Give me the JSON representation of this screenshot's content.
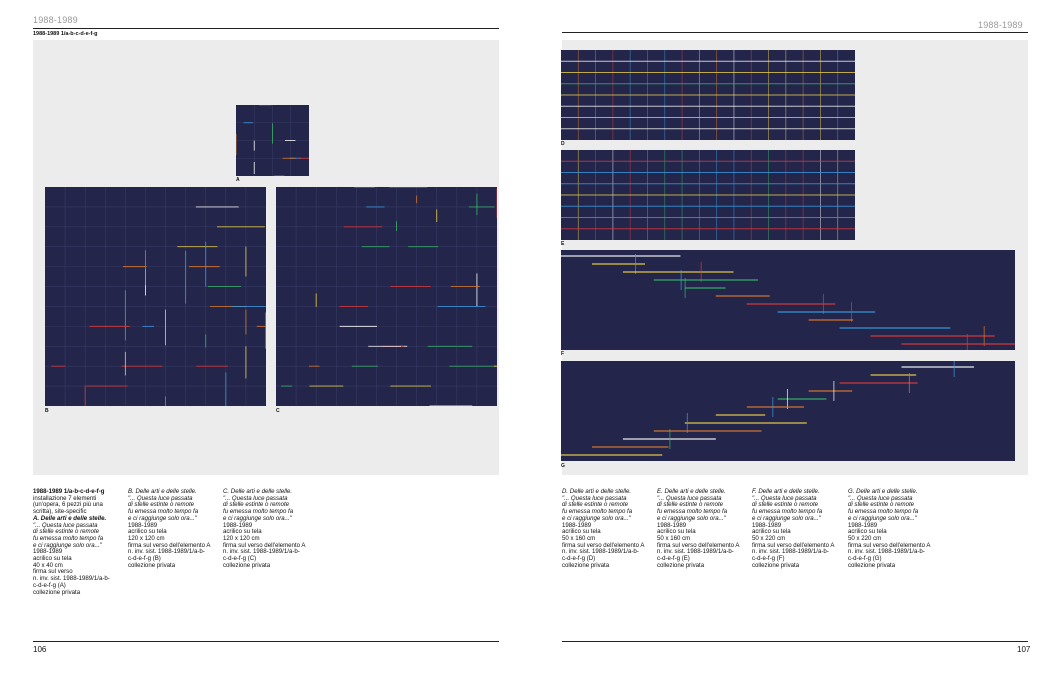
{
  "left_page": {
    "header": "1988-1989",
    "subheader": "1988-1989   1/a-b-c-d-e-f-g",
    "page_number": "106",
    "labels": [
      "A",
      "B",
      "C"
    ],
    "captions": [
      [
        "1988-1989   1/a-b-c-d-e-f-g",
        "installazione 7 elementi",
        "(un'opera, 6 pezzi più una",
        "scritta), site-specific",
        "A. Delle arti e delle stelle.",
        "\"... Questa luce passata",
        "di stelle estinte o remote",
        "fu emessa molto tempo fa",
        "e ci raggiunge solo ora...\"",
        "1988-1989",
        "acrilico su tela",
        "40 x 40 cm",
        "firma sul verso",
        "n. inv. sist. 1988-1989/1/a-b-",
        "c-d-e-f-g (A)",
        "collezione privata"
      ],
      [
        "B. Delle arti e delle stelle.",
        "\"... Questa luce passata",
        "di stelle estinte o remote",
        "fu emessa molto tempo fa",
        "e ci raggiunge solo ora...\"",
        "1988-1989",
        "acrilico su tela",
        "120 x 120 cm",
        "firma sul verso dell'elemento A",
        "n. inv. sist. 1988-1989/1/a-b-",
        "c-d-e-f-g (B)",
        "collezione privata"
      ],
      [
        "C. Delle arti e delle stelle.",
        "\"... Questa luce passata",
        "di stelle estinte o remote",
        "fu emessa molto tempo fa",
        "e ci raggiunge solo ora...\"",
        "1988-1989",
        "acrilico su tela",
        "120 x 120 cm",
        "firma sul verso dell'elemento A",
        "n. inv. sist. 1988-1989/1/a-b-",
        "c-d-e-f-g (C)",
        "collezione privata"
      ]
    ]
  },
  "right_page": {
    "header": "1988-1989",
    "page_number": "107",
    "labels": [
      "D",
      "E",
      "F",
      "G"
    ],
    "captions": [
      [
        "D. Delle arti e delle stelle.",
        "\"... Questa luce passata",
        "di stelle estinte o remote",
        "fu emessa molto tempo fa",
        "e ci raggiunge solo ora...\"",
        "1988-1989",
        "acrilico su tela",
        "50 x 160 cm",
        "firma sul verso dell'elemento A",
        "n. inv. sist. 1988-1989/1/a-b-",
        "c-d-e-f-g (D)",
        "collezione privata"
      ],
      [
        "E. Delle arti e delle stelle.",
        "\"... Questa luce passata",
        "di stelle estinte o remote",
        "fu emessa molto tempo fa",
        "e ci raggiunge solo ora...\"",
        "1988-1989",
        "acrilico su tela",
        "50 x 160 cm",
        "firma sul verso dell'elemento A",
        "n. inv. sist. 1988-1989/1/a-b-",
        "c-d-e-f-g (E)",
        "collezione privata"
      ],
      [
        "F. Delle arti e delle stelle.",
        "\"... Questa luce passata",
        "di stelle estinte o remote",
        "fu emessa molto tempo fa",
        "e ci raggiunge solo ora...\"",
        "1988-1989",
        "acrilico su tela",
        "50 x 220 cm",
        "firma sul verso dell'elemento A",
        "n. inv. sist. 1988-1989/1/a-b-",
        "c-d-e-f-g (F)",
        "collezione privata"
      ],
      [
        "G. Delle arti e delle stelle.",
        "\"... Questa luce passata",
        "di stelle estinte o remote",
        "fu emessa molto tempo fa",
        "e ci raggiunge solo ora...\"",
        "1988-1989",
        "acrilico su tela",
        "50 x 220 cm",
        "firma sul verso dell'elemento A",
        "n. inv. sist. 1988-1989/1/a-b-",
        "c-d-e-f-g (G)",
        "collezione privata"
      ]
    ]
  },
  "colors": {
    "canvas": "#23264a",
    "panel": "#ececed",
    "header_gray": "#9a9a9a",
    "accents": [
      "#e23a3a",
      "#f2d64a",
      "#39b86a",
      "#3a9ee8",
      "#ffffff",
      "#e07b2a"
    ]
  }
}
